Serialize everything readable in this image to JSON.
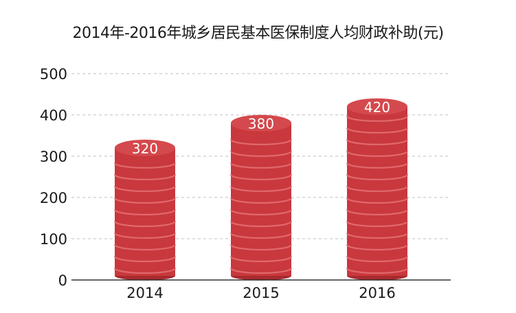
{
  "chart_data": {
    "type": "bar",
    "title": "2014年-2016年城乡居民基本医保制度人均财政补助(元)",
    "categories": [
      "2014",
      "2015",
      "2016"
    ],
    "values": [
      320,
      380,
      420
    ],
    "data_labels": [
      "320",
      "380",
      "420"
    ],
    "y_ticks": [
      "0",
      "100",
      "200",
      "300",
      "400",
      "500"
    ],
    "ylim": [
      0,
      500
    ],
    "grid": "horizontal dashed",
    "bar_style": "stacked coins",
    "colors": {
      "bar": "#c8383c",
      "bar_dark": "#a82a2e",
      "bar_top": "#d4494d",
      "ring": "#e0686b",
      "grid": "#cccccc",
      "axis": "#333333"
    }
  }
}
